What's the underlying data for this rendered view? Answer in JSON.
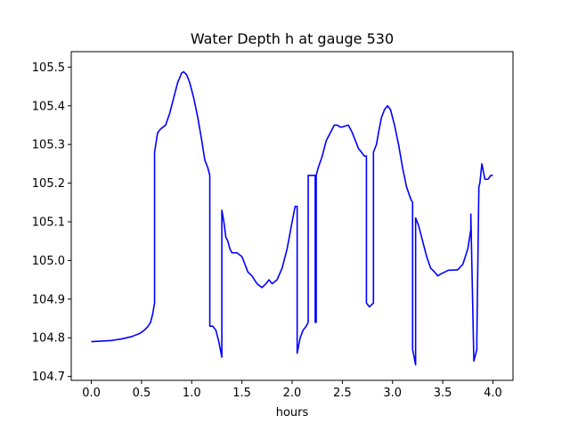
{
  "chart_data": {
    "type": "line",
    "title": "Water Depth h at gauge 530",
    "xlabel": "hours",
    "ylabel": "",
    "xlim": [
      -0.2,
      4.2
    ],
    "ylim": [
      104.69,
      105.54
    ],
    "xticks": [
      0.0,
      0.5,
      1.0,
      1.5,
      2.0,
      2.5,
      3.0,
      3.5,
      4.0
    ],
    "xtick_labels": [
      "0.0",
      "0.5",
      "1.0",
      "1.5",
      "2.0",
      "2.5",
      "3.0",
      "3.5",
      "4.0"
    ],
    "yticks": [
      104.7,
      104.8,
      104.9,
      105.0,
      105.1,
      105.2,
      105.3,
      105.4,
      105.5
    ],
    "ytick_labels": [
      "104.7",
      "104.8",
      "104.9",
      "105.0",
      "105.1",
      "105.2",
      "105.3",
      "105.4",
      "105.5"
    ],
    "grid": false,
    "legend": "none",
    "series": [
      {
        "color": "#0000ff",
        "x": [
          0.0,
          0.2,
          0.3,
          0.4,
          0.48,
          0.52,
          0.56,
          0.59,
          0.61,
          0.63,
          0.63,
          0.66,
          0.69,
          0.74,
          0.78,
          0.82,
          0.86,
          0.9,
          0.92,
          0.95,
          0.98,
          1.02,
          1.06,
          1.1,
          1.13,
          1.16,
          1.18,
          1.18,
          1.21,
          1.24,
          1.27,
          1.3,
          1.3,
          1.32,
          1.34,
          1.36,
          1.38,
          1.4,
          1.45,
          1.5,
          1.53,
          1.56,
          1.6,
          1.65,
          1.7,
          1.74,
          1.77,
          1.8,
          1.85,
          1.9,
          1.95,
          2.0,
          2.03,
          2.05,
          2.05,
          2.08,
          2.11,
          2.14,
          2.16,
          2.16,
          2.19,
          2.21,
          2.23,
          2.23,
          2.24,
          2.24,
          2.26,
          2.3,
          2.34,
          2.38,
          2.42,
          2.45,
          2.48,
          2.5,
          2.53,
          2.56,
          2.6,
          2.63,
          2.66,
          2.69,
          2.72,
          2.74,
          2.74,
          2.77,
          2.79,
          2.81,
          2.81,
          2.84,
          2.86,
          2.89,
          2.92,
          2.95,
          2.98,
          3.02,
          3.06,
          3.1,
          3.14,
          3.18,
          3.2,
          3.2,
          3.23,
          3.23,
          3.26,
          3.3,
          3.34,
          3.38,
          3.42,
          3.45,
          3.48,
          3.52,
          3.56,
          3.6,
          3.65,
          3.7,
          3.75,
          3.78,
          3.78,
          3.81,
          3.84,
          3.84,
          3.86,
          3.87,
          3.89,
          3.92,
          3.95,
          3.98,
          4.0
        ],
        "y": [
          104.79,
          104.793,
          104.797,
          104.803,
          104.811,
          104.818,
          104.828,
          104.84,
          104.86,
          104.89,
          105.28,
          105.33,
          105.34,
          105.35,
          105.38,
          105.42,
          105.46,
          105.485,
          105.488,
          105.48,
          105.46,
          105.42,
          105.37,
          105.31,
          105.26,
          105.24,
          105.22,
          104.83,
          104.83,
          104.82,
          104.79,
          104.75,
          105.13,
          105.1,
          105.06,
          105.05,
          105.03,
          105.02,
          105.02,
          105.01,
          104.99,
          104.97,
          104.96,
          104.94,
          104.93,
          104.94,
          104.95,
          104.94,
          104.95,
          104.98,
          105.03,
          105.1,
          105.14,
          105.14,
          104.76,
          104.8,
          104.82,
          104.83,
          104.84,
          105.22,
          105.22,
          105.22,
          105.22,
          104.84,
          104.84,
          105.22,
          105.24,
          105.27,
          105.31,
          105.33,
          105.35,
          105.35,
          105.345,
          105.345,
          105.348,
          105.35,
          105.33,
          105.31,
          105.29,
          105.28,
          105.27,
          105.27,
          104.89,
          104.88,
          104.885,
          104.89,
          105.28,
          105.3,
          105.33,
          105.37,
          105.39,
          105.4,
          105.39,
          105.35,
          105.3,
          105.24,
          105.19,
          105.16,
          105.15,
          104.77,
          104.73,
          105.11,
          105.09,
          105.05,
          105.01,
          104.98,
          104.97,
          104.96,
          104.965,
          104.97,
          104.975,
          104.975,
          104.976,
          104.99,
          105.03,
          105.08,
          105.12,
          104.74,
          104.77,
          104.8,
          105.19,
          105.2,
          105.25,
          105.21,
          105.21,
          105.22,
          105.22
        ]
      }
    ]
  }
}
